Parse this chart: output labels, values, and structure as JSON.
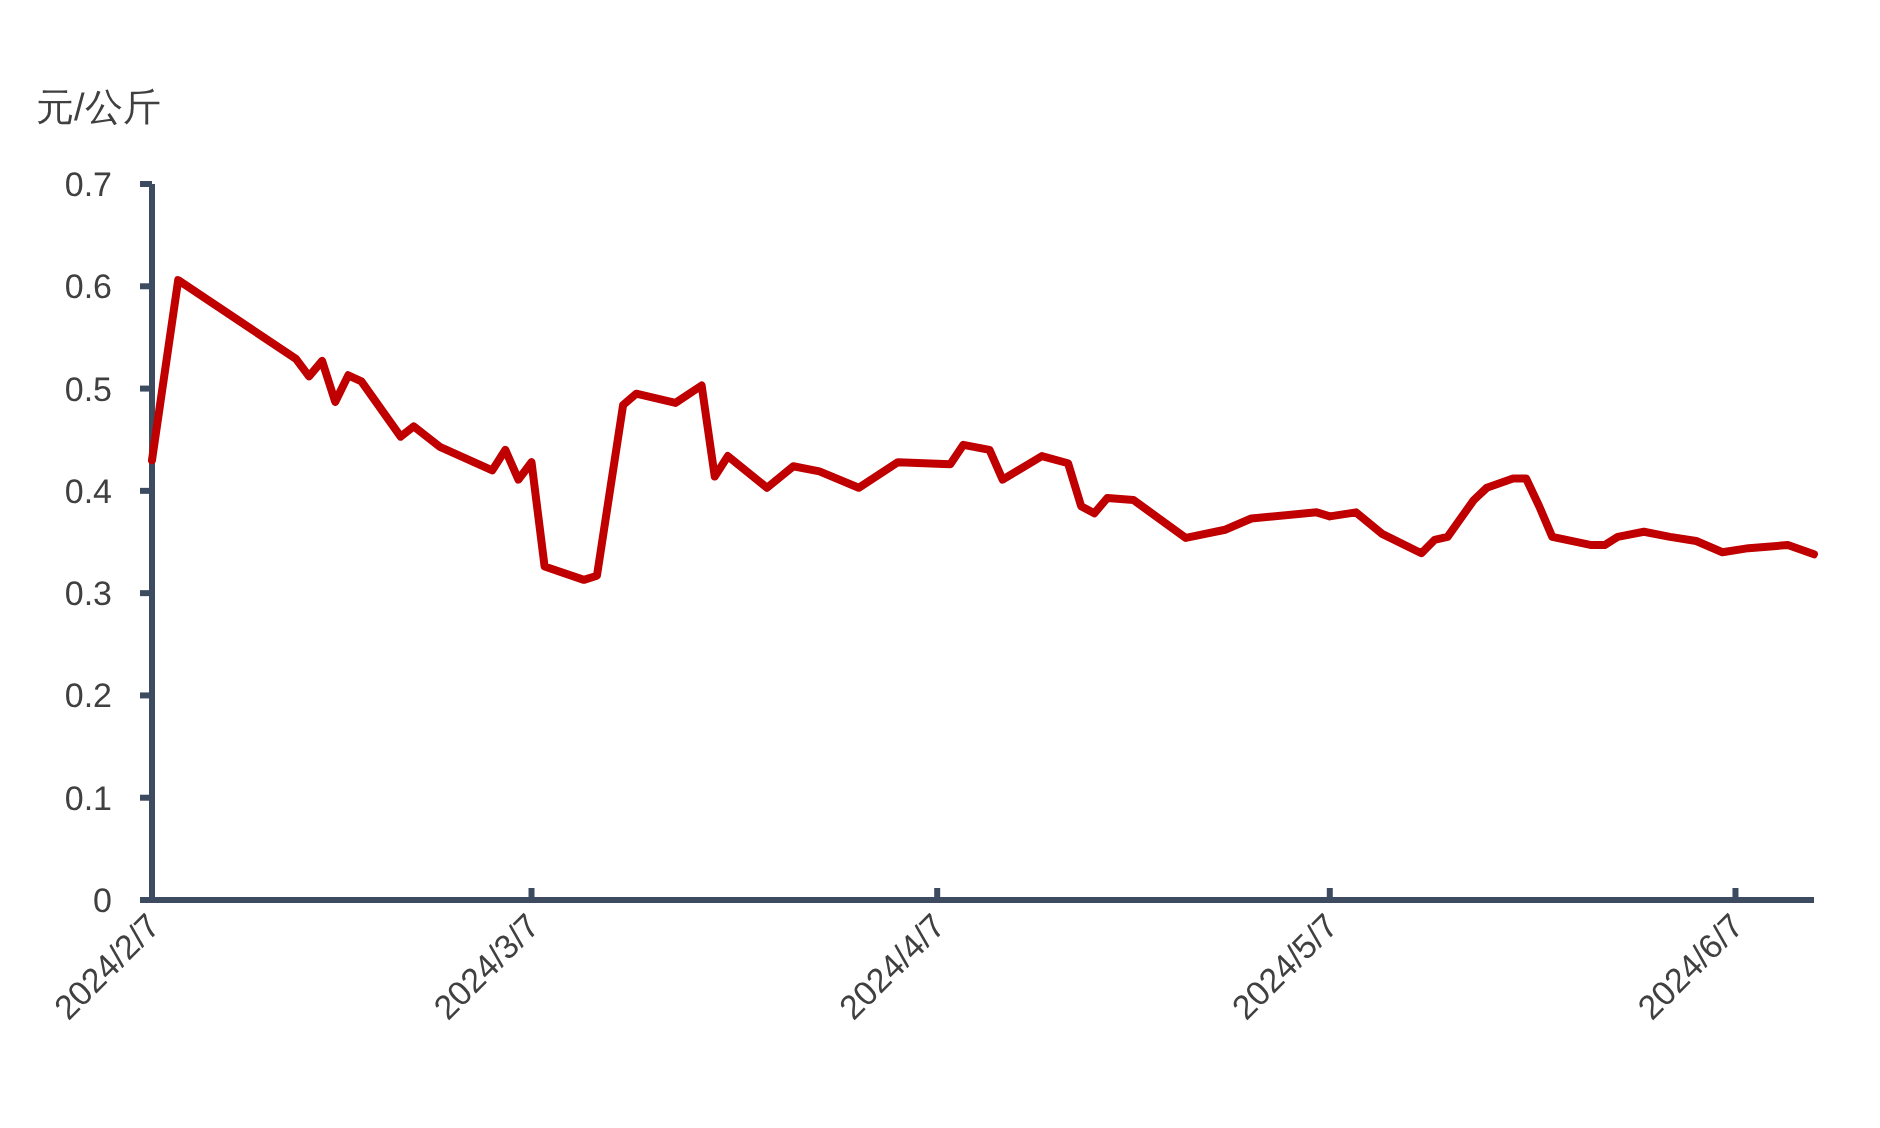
{
  "chart_data": {
    "type": "line",
    "ylabel": "元/公斤",
    "x": [
      "2024-02-07",
      "2024-02-09",
      "2024-02-18",
      "2024-02-19",
      "2024-02-20",
      "2024-02-21",
      "2024-02-22",
      "2024-02-23",
      "2024-02-26",
      "2024-02-27",
      "2024-02-29",
      "2024-03-04",
      "2024-03-05",
      "2024-03-06",
      "2024-03-07",
      "2024-03-08",
      "2024-03-11",
      "2024-03-12",
      "2024-03-14",
      "2024-03-15",
      "2024-03-18",
      "2024-03-20",
      "2024-03-21",
      "2024-03-22",
      "2024-03-25",
      "2024-03-27",
      "2024-03-29",
      "2024-04-01",
      "2024-04-04",
      "2024-04-08",
      "2024-04-09",
      "2024-04-11",
      "2024-04-12",
      "2024-04-15",
      "2024-04-17",
      "2024-04-18",
      "2024-04-19",
      "2024-04-20",
      "2024-04-22",
      "2024-04-26",
      "2024-04-29",
      "2024-05-01",
      "2024-05-06",
      "2024-05-07",
      "2024-05-09",
      "2024-05-11",
      "2024-05-14",
      "2024-05-15",
      "2024-05-16",
      "2024-05-18",
      "2024-05-19",
      "2024-05-21",
      "2024-05-22",
      "2024-05-23",
      "2024-05-24",
      "2024-05-27",
      "2024-05-28",
      "2024-05-29",
      "2024-05-31",
      "2024-06-02",
      "2024-06-04",
      "2024-06-06",
      "2024-06-08",
      "2024-06-11",
      "2024-06-13"
    ],
    "series": [
      {
        "color": "#c00000",
        "values": [
          0.43,
          0.606,
          0.529,
          0.512,
          0.527,
          0.487,
          0.513,
          0.507,
          0.453,
          0.463,
          0.443,
          0.42,
          0.44,
          0.411,
          0.428,
          0.326,
          0.313,
          0.317,
          0.484,
          0.495,
          0.486,
          0.503,
          0.414,
          0.434,
          0.403,
          0.424,
          0.419,
          0.403,
          0.428,
          0.426,
          0.445,
          0.44,
          0.411,
          0.434,
          0.427,
          0.385,
          0.378,
          0.393,
          0.391,
          0.354,
          0.362,
          0.373,
          0.379,
          0.375,
          0.379,
          0.358,
          0.339,
          0.352,
          0.355,
          0.391,
          0.403,
          0.412,
          0.412,
          0.385,
          0.355,
          0.347,
          0.347,
          0.355,
          0.36,
          0.355,
          0.351,
          0.34,
          0.344,
          0.347,
          0.338
        ]
      }
    ],
    "xlim": [
      "2024-02-07",
      "2024-06-13"
    ],
    "ylim": [
      0,
      0.7
    ],
    "xticks": [
      {
        "value": "2024-02-07",
        "label": "2024/2/7"
      },
      {
        "value": "2024-03-07",
        "label": "2024/3/7"
      },
      {
        "value": "2024-04-07",
        "label": "2024/4/7"
      },
      {
        "value": "2024-05-07",
        "label": "2024/5/7"
      },
      {
        "value": "2024-06-07",
        "label": "2024/6/7"
      }
    ],
    "yticks": [
      0,
      0.1,
      0.2,
      0.3,
      0.4,
      0.5,
      0.6,
      0.7
    ]
  }
}
